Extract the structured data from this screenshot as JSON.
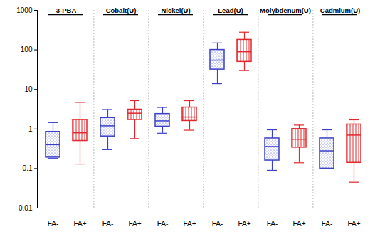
{
  "chart_data": {
    "type": "box",
    "groups": [
      "3-PBA",
      "Cobalt(U)",
      "Nickel(U)",
      "Lead(U)",
      "Molybdenum(U)",
      "Cadmium(U)"
    ],
    "categories": [
      "FA-",
      "FA+"
    ],
    "colors": [
      "#3a40cc",
      "#e3262b"
    ],
    "boxes": [
      [
        {
          "min": 0.18,
          "q1": 0.19,
          "median": 0.4,
          "q3": 0.85,
          "max": 1.45
        },
        {
          "min": 0.13,
          "q1": 0.5,
          "median": 0.8,
          "q3": 1.7,
          "max": 4.7
        }
      ],
      [
        {
          "min": 0.3,
          "q1": 0.65,
          "median": 1.2,
          "q3": 1.9,
          "max": 3.1
        },
        {
          "min": 0.57,
          "q1": 1.7,
          "median": 2.5,
          "q3": 3.1,
          "max": 5.2
        }
      ],
      [
        {
          "min": 0.78,
          "q1": 1.15,
          "median": 1.6,
          "q3": 2.4,
          "max": 3.5
        },
        {
          "min": 0.93,
          "q1": 1.6,
          "median": 2.0,
          "q3": 3.5,
          "max": 5.2
        }
      ],
      [
        {
          "min": 14,
          "q1": 32,
          "median": 55,
          "q3": 100,
          "max": 150
        },
        {
          "min": 30,
          "q1": 50,
          "median": 90,
          "q3": 180,
          "max": 280
        }
      ],
      [
        {
          "min": 0.09,
          "q1": 0.16,
          "median": 0.36,
          "q3": 0.58,
          "max": 0.95
        },
        {
          "min": 0.14,
          "q1": 0.34,
          "median": 0.55,
          "q3": 1.0,
          "max": 1.25
        }
      ],
      [
        {
          "min": 0.1,
          "q1": 0.1,
          "median": 0.28,
          "q3": 0.58,
          "max": 0.95
        },
        {
          "min": 0.045,
          "q1": 0.14,
          "median": 0.7,
          "q3": 1.3,
          "max": 1.7
        }
      ]
    ],
    "log": "y",
    "ylim": [
      0.01,
      1000
    ],
    "yticks": [
      0.01,
      0.1,
      1,
      10,
      100,
      1000
    ],
    "grid": false
  }
}
